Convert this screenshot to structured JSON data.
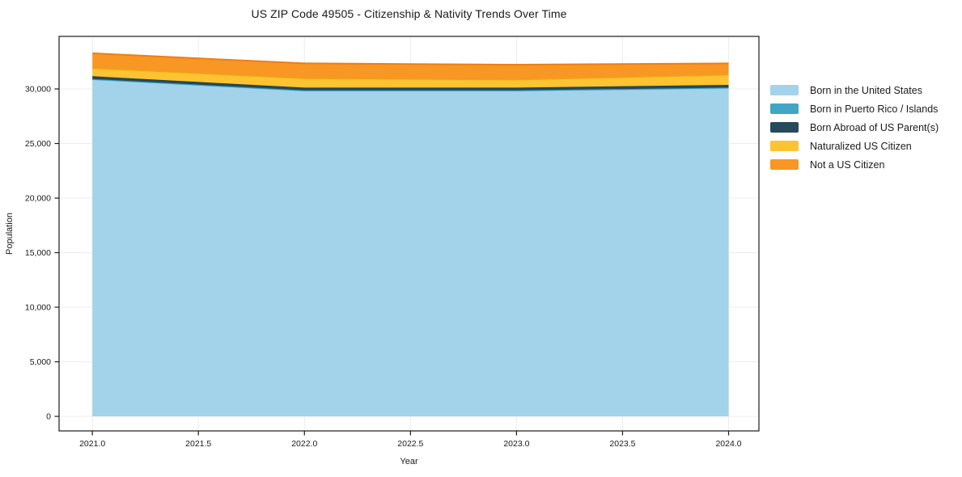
{
  "title": "US ZIP Code 49505 - Citizenship & Nativity Trends Over Time",
  "chart_data": {
    "type": "area",
    "stacked": true,
    "title": "US ZIP Code 49505 - Citizenship & Nativity Trends Over Time",
    "xlabel": "Year",
    "ylabel": "Population",
    "x": [
      2021,
      2022,
      2023,
      2024
    ],
    "series": [
      {
        "name": "Born in the United States",
        "fill": "#a3d3ea",
        "line": "#8ec6e0",
        "values": [
          30860,
          29820,
          29820,
          30070
        ]
      },
      {
        "name": "Born in Puerto Rico / Islands",
        "fill": "#41a6c4",
        "line": "#3a9cba",
        "values": [
          50,
          50,
          50,
          50
        ]
      },
      {
        "name": "Born Abroad of US Parent(s)",
        "fill": "#26495c",
        "line": "#1f3f50",
        "values": [
          250,
          250,
          250,
          250
        ]
      },
      {
        "name": "Naturalized US Citizen",
        "fill": "#fdc330",
        "line": "#eda811",
        "values": [
          760,
          860,
          740,
          940
        ]
      },
      {
        "name": "Not a US Citizen",
        "fill": "#f89724",
        "line": "#ef7d15",
        "values": [
          1350,
          1360,
          1360,
          1030
        ]
      }
    ],
    "totals": [
      33270,
      32340,
      32220,
      32340
    ],
    "xlim": [
      2020.843,
      2024.143
    ],
    "ylim": [
      -1333,
      34815
    ],
    "xticks": [
      2021.0,
      2021.5,
      2022.0,
      2022.5,
      2023.0,
      2023.5,
      2024.0
    ],
    "xtick_labels": [
      "2021.0",
      "2021.5",
      "2022.0",
      "2022.5",
      "2023.0",
      "2023.5",
      "2024.0"
    ],
    "yticks": [
      0,
      5000,
      10000,
      15000,
      20000,
      25000,
      30000
    ],
    "ytick_labels": [
      "0",
      "5,000",
      "10,000",
      "15,000",
      "20,000",
      "25,000",
      "30,000"
    ],
    "grid": true,
    "grid_color": "#ececec",
    "frame_color": "#1a1a1a",
    "text_color": "#1a1a1a",
    "background": "#ffffff",
    "legend_position": "right of plot"
  }
}
